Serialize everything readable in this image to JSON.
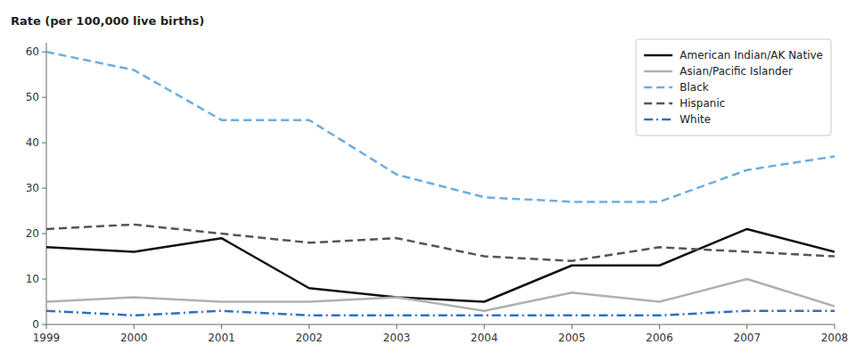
{
  "chart_data": {
    "type": "line",
    "ylabel": "Rate (per 100,000 live births)",
    "x": [
      1999,
      2000,
      2001,
      2002,
      2003,
      2004,
      2005,
      2006,
      2007,
      2008
    ],
    "xlim": [
      1999,
      2008
    ],
    "xticks": [
      1999,
      2000,
      2001,
      2002,
      2003,
      2004,
      2005,
      2006,
      2007,
      2008
    ],
    "ylim": [
      0,
      62
    ],
    "yticks": [
      0,
      10,
      20,
      30,
      40,
      50,
      60
    ],
    "grid": false,
    "legend": "upper right",
    "series": [
      {
        "name": "American Indian/AK Native",
        "color": "#111111",
        "line_style": "solid",
        "values": [
          17,
          16,
          19,
          8,
          6,
          5,
          13,
          13,
          21,
          16
        ]
      },
      {
        "name": "Asian/Pacific Islander",
        "color": "#b0b0b0",
        "line_style": "solid",
        "values": [
          5,
          6,
          5,
          5,
          6,
          3,
          7,
          5,
          10,
          4
        ]
      },
      {
        "name": "Black",
        "color": "#6aaee0",
        "line_style": "dashed",
        "values": [
          60,
          56,
          45,
          45,
          33,
          28,
          27,
          27,
          34,
          37
        ]
      },
      {
        "name": "Hispanic",
        "color": "#555555",
        "line_style": "dashed",
        "values": [
          21,
          22,
          20,
          18,
          19,
          15,
          14,
          17,
          16,
          15
        ]
      },
      {
        "name": "White",
        "color": "#3070c0",
        "line_style": "dashdot",
        "values": [
          3,
          2,
          3,
          2,
          2,
          2,
          2,
          2,
          3,
          3
        ]
      }
    ]
  }
}
